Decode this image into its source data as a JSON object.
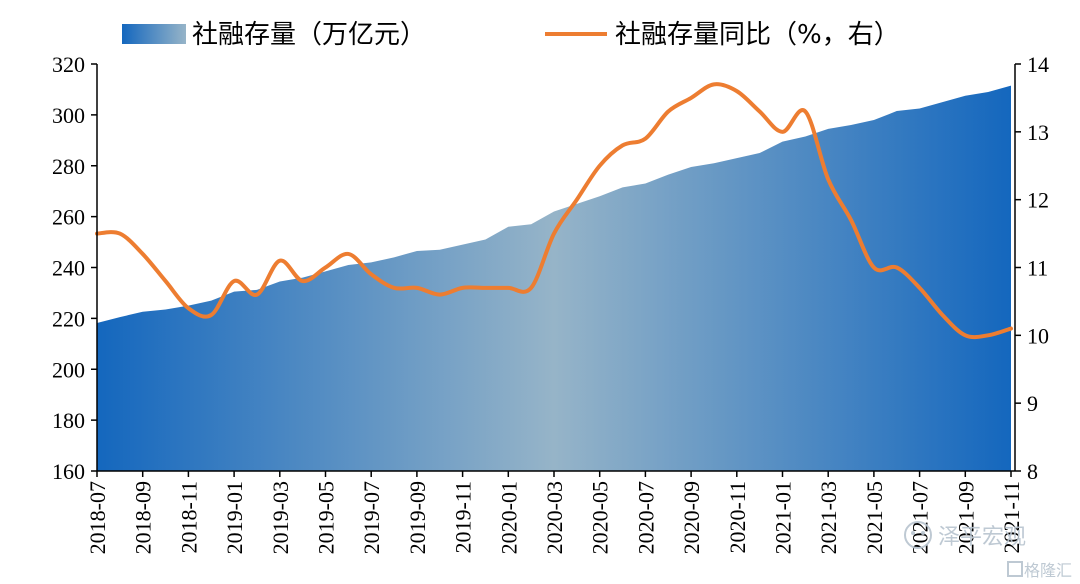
{
  "chart_data": {
    "type": "area+line",
    "legend": {
      "area_label": "社融存量（万亿元）",
      "line_label": "社融存量同比（%，右）",
      "placement": "top"
    },
    "x_tick_labels": [
      "2018-07",
      "2018-09",
      "2018-11",
      "2019-01",
      "2019-03",
      "2019-05",
      "2019-07",
      "2019-09",
      "2019-11",
      "2020-01",
      "2020-03",
      "2020-05",
      "2020-07",
      "2020-09",
      "2020-11",
      "2021-01",
      "2021-03",
      "2021-05",
      "2021-07",
      "2021-09",
      "2021-11"
    ],
    "left_axis": {
      "ylim": [
        160,
        320
      ],
      "ticks": [
        160,
        180,
        200,
        220,
        240,
        260,
        280,
        300,
        320
      ]
    },
    "right_axis": {
      "ylim": [
        8,
        14
      ],
      "ticks": [
        8,
        9,
        10,
        11,
        12,
        13,
        14
      ]
    },
    "x": [
      "2018-07",
      "2018-08",
      "2018-09",
      "2018-10",
      "2018-11",
      "2018-12",
      "2019-01",
      "2019-02",
      "2019-03",
      "2019-04",
      "2019-05",
      "2019-06",
      "2019-07",
      "2019-08",
      "2019-09",
      "2019-10",
      "2019-11",
      "2019-12",
      "2020-01",
      "2020-02",
      "2020-03",
      "2020-04",
      "2020-05",
      "2020-06",
      "2020-07",
      "2020-08",
      "2020-09",
      "2020-10",
      "2020-11",
      "2020-12",
      "2021-01",
      "2021-02",
      "2021-03",
      "2021-04",
      "2021-05",
      "2021-06",
      "2021-07",
      "2021-08",
      "2021-09",
      "2021-10",
      "2021-11"
    ],
    "series": [
      {
        "name": "社融存量（万亿元）",
        "axis": "left",
        "kind": "area",
        "values": [
          218.2,
          220.5,
          222.6,
          223.5,
          225.0,
          227.0,
          230.5,
          231.2,
          234.5,
          236.0,
          238.5,
          241.0,
          242.0,
          244.0,
          246.5,
          247.0,
          249.0,
          251.0,
          256.0,
          257.0,
          262.0,
          265.0,
          268.0,
          271.5,
          273.0,
          276.5,
          279.5,
          281.0,
          283.0,
          285.0,
          289.5,
          291.5,
          294.5,
          296.0,
          298.0,
          301.5,
          302.5,
          305.0,
          307.5,
          309.0,
          311.5
        ]
      },
      {
        "name": "社融存量同比（%，右）",
        "axis": "right",
        "kind": "line",
        "color": "#ED7D31",
        "values": [
          11.5,
          11.5,
          11.2,
          10.8,
          10.4,
          10.3,
          10.8,
          10.6,
          11.1,
          10.8,
          11.0,
          11.2,
          10.9,
          10.7,
          10.7,
          10.6,
          10.7,
          10.7,
          10.7,
          10.7,
          11.5,
          12.0,
          12.5,
          12.8,
          12.9,
          13.3,
          13.5,
          13.7,
          13.6,
          13.3,
          13.0,
          13.3,
          12.3,
          11.7,
          11.0,
          11.0,
          10.7,
          10.3,
          10.0,
          10.0,
          10.1
        ]
      }
    ],
    "area_gradient": {
      "edge": "#1467BE",
      "middle": "#96B4C8"
    }
  },
  "watermark": {
    "brand": "泽平宏观",
    "source": "格隆汇"
  }
}
